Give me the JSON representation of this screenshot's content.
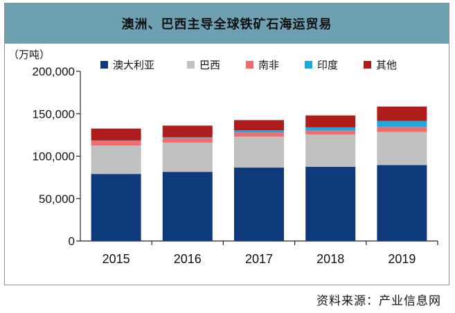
{
  "chart_data": {
    "type": "bar",
    "stacked": true,
    "title": "澳洲、巴西主导全球铁矿石海运贸易",
    "ylabel": "（万吨）",
    "categories": [
      "2015",
      "2016",
      "2017",
      "2018",
      "2019"
    ],
    "ylim": [
      0,
      200000
    ],
    "yticks": [
      0,
      50000,
      100000,
      150000,
      200000
    ],
    "ytick_labels": [
      "0",
      "50,000",
      "100,000",
      "150,000",
      "200,000"
    ],
    "grid": false,
    "legend_position": "top",
    "series": [
      {
        "name": "澳大利亚",
        "color": "#0e3a7c",
        "values": [
          79000,
          81500,
          86500,
          87500,
          89500
        ]
      },
      {
        "name": "巴西",
        "color": "#c0c0c0",
        "values": [
          33500,
          34500,
          36500,
          38000,
          39000
        ]
      },
      {
        "name": "南非",
        "color": "#f26c6c",
        "values": [
          5500,
          5500,
          5000,
          4500,
          6000
        ]
      },
      {
        "name": "印度",
        "color": "#1ba7e0",
        "values": [
          500,
          1000,
          2500,
          4000,
          7000
        ]
      },
      {
        "name": "其他",
        "color": "#b01c1c",
        "values": [
          14000,
          13500,
          12000,
          14000,
          17000
        ]
      }
    ]
  },
  "source": "资料来源：产业信息网"
}
